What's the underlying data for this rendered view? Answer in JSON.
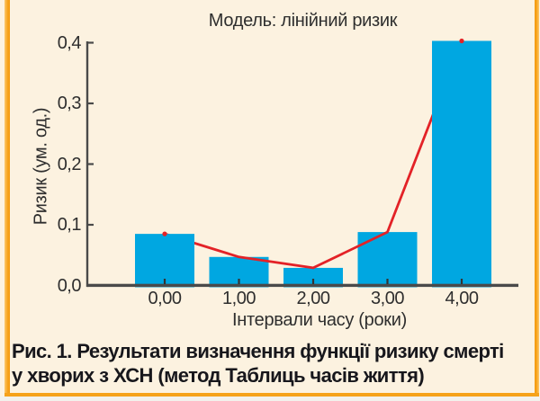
{
  "figure": {
    "background_color": "#fcf2e0",
    "border_color": "#f6a21a",
    "bar_color": "#00a7e1",
    "line_color": "#e32227",
    "axis_color": "#4a4a4a",
    "text_color": "#2e2e2e",
    "caption_color": "#17171c"
  },
  "chart_data": {
    "type": "bar",
    "title": "Модель: лінійний ризик",
    "xlabel": "Інтервали часу (роки)",
    "ylabel": "Ризик (ум. од.)",
    "categories": [
      "0,00",
      "1,00",
      "2,00",
      "3,00",
      "4,00"
    ],
    "x_values": [
      0,
      1,
      2,
      3,
      4
    ],
    "series": [
      {
        "name": "risk-bars",
        "type": "bar",
        "color": "#00a7e1",
        "values": [
          0.085,
          0.047,
          0.029,
          0.088,
          0.403
        ]
      },
      {
        "name": "risk-line",
        "type": "line",
        "color": "#e32227",
        "values": [
          0.085,
          0.047,
          0.029,
          0.088,
          0.403
        ]
      }
    ],
    "ylim": [
      0,
      0.4
    ],
    "ytick_labels": [
      "0,0",
      "0,1",
      "0,2",
      "0,3",
      "0,4"
    ],
    "ytick_values": [
      0.0,
      0.1,
      0.2,
      0.3,
      0.4
    ],
    "grid": false,
    "legend": "none"
  },
  "caption": {
    "line1": "Рис. 1. Результати визначення функції ризику смерті",
    "line2": "у хворих з ХСН (метод Таблиць часів життя)"
  }
}
